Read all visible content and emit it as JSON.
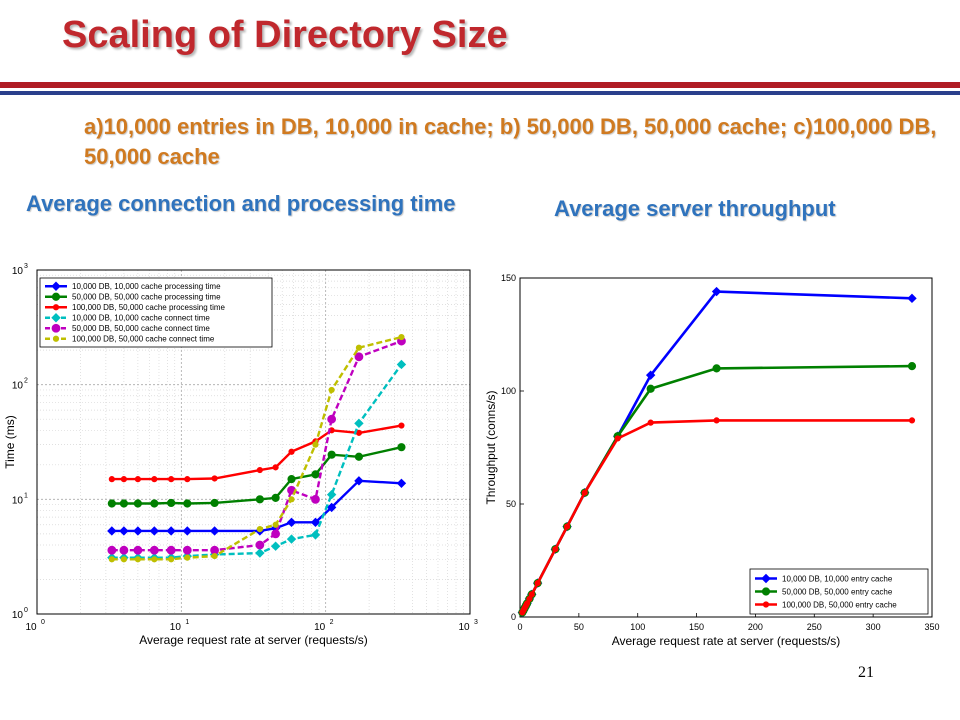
{
  "slide": {
    "title": "Scaling of Directory Size",
    "subtitle": "a)10,000 entries in DB, 10,000 in cache; b) 50,000 DB, 50,000 cache; c)100,000 DB, 50,000 cache",
    "left_caption": "Average connection  and processing time",
    "right_caption": "Average server throughput",
    "page_number": "21"
  },
  "chart_data": [
    {
      "type": "line",
      "xscale": "log",
      "yscale": "log",
      "xlim": [
        1,
        1000
      ],
      "ylim": [
        1,
        1000
      ],
      "xlabel": "Average request rate at server (requests/s)",
      "ylabel": "Time (ms)",
      "xticks": [
        1,
        10,
        100,
        1000
      ],
      "yticks": [
        1,
        10,
        100,
        1000
      ],
      "tick_labels": [
        {
          "base": "10",
          "exp": "0"
        },
        {
          "base": "10",
          "exp": "1"
        },
        {
          "base": "10",
          "exp": "2"
        },
        {
          "base": "10",
          "exp": "3"
        }
      ],
      "grid": true,
      "legend_position": "top-left",
      "series": [
        {
          "name": "10,000 DB, 10,000 cache processing time",
          "color": "#0000ff",
          "style": "solid",
          "marker": "diamond",
          "x": [
            3.3,
            4,
            5,
            6.5,
            8.5,
            11,
            17,
            35,
            45,
            58,
            85,
            110,
            170,
            335
          ],
          "y": [
            5.3,
            5.3,
            5.3,
            5.3,
            5.3,
            5.3,
            5.3,
            5.3,
            5.6,
            6.3,
            6.3,
            8.5,
            14.5,
            13.8
          ]
        },
        {
          "name": "50,000 DB, 50,000 cache processing time",
          "color": "#008000",
          "style": "solid",
          "marker": "circle",
          "x": [
            3.3,
            4,
            5,
            6.5,
            8.5,
            11,
            17,
            35,
            45,
            58,
            85,
            110,
            170,
            335
          ],
          "y": [
            9.2,
            9.2,
            9.2,
            9.2,
            9.3,
            9.2,
            9.3,
            10.0,
            10.3,
            15.0,
            16.5,
            24.5,
            23.5,
            28.5
          ]
        },
        {
          "name": "100,000 DB, 50,000 cache processing time",
          "color": "#ff0000",
          "style": "solid",
          "marker": "dot",
          "x": [
            3.3,
            4,
            5,
            6.5,
            8.5,
            11,
            17,
            35,
            45,
            58,
            85,
            110,
            170,
            335
          ],
          "y": [
            15,
            15,
            15,
            15,
            15,
            15,
            15.2,
            18,
            19,
            26,
            32,
            40,
            38,
            44
          ]
        },
        {
          "name": "10,000 DB, 10,000 cache connect time",
          "color": "#00bfbf",
          "style": "dashed",
          "marker": "diamond",
          "x": [
            3.3,
            4,
            5,
            6.5,
            8.5,
            11,
            17,
            35,
            45,
            58,
            85,
            110,
            170,
            335
          ],
          "y": [
            3.1,
            3.1,
            3.1,
            3.1,
            3.1,
            3.2,
            3.3,
            3.4,
            3.9,
            4.5,
            4.9,
            11,
            46,
            150
          ]
        },
        {
          "name": "50,000 DB, 50,000 cache connect time",
          "color": "#bf00bf",
          "style": "dashed",
          "marker": "circle",
          "x": [
            3.3,
            4,
            5,
            6.5,
            8.5,
            11,
            17,
            35,
            45,
            58,
            85,
            110,
            170,
            335
          ],
          "y": [
            3.6,
            3.6,
            3.6,
            3.6,
            3.6,
            3.6,
            3.6,
            4.0,
            5.0,
            12,
            10,
            50,
            175,
            240
          ]
        },
        {
          "name": "100,000 DB, 50,000 cache connect time",
          "color": "#bfbf00",
          "style": "dashed",
          "marker": "dot",
          "x": [
            3.3,
            4,
            5,
            6.5,
            8.5,
            11,
            17,
            35,
            45,
            58,
            85,
            110,
            170,
            335
          ],
          "y": [
            3.0,
            3.0,
            3.0,
            3.0,
            3.0,
            3.1,
            3.2,
            5.5,
            6.0,
            10,
            30,
            90,
            210,
            260
          ]
        }
      ]
    },
    {
      "type": "line",
      "xlim": [
        0,
        350
      ],
      "ylim": [
        0,
        150
      ],
      "xlabel": "Average request rate at server (requests/s)",
      "ylabel": "Throughput (conns/s)",
      "xticks": [
        0,
        50,
        100,
        150,
        200,
        250,
        300,
        350
      ],
      "yticks": [
        0,
        50,
        100,
        150
      ],
      "xtick_labels": [
        "0",
        "50",
        "100",
        "150",
        "200",
        "250",
        "300",
        "350"
      ],
      "ytick_labels": [
        "0",
        "50",
        "100",
        "150"
      ],
      "grid": false,
      "legend_position": "bottom-right",
      "series": [
        {
          "name": "10,000 DB, 10,000 entry cache",
          "color": "#0000ff",
          "style": "solid",
          "marker": "diamond",
          "x": [
            2,
            3,
            4,
            5,
            6,
            8,
            10,
            15,
            30,
            40,
            55,
            83,
            111,
            167,
            333
          ],
          "y": [
            2,
            3,
            4,
            5,
            6,
            8,
            10,
            15,
            30,
            40,
            55,
            80,
            107,
            144,
            141
          ]
        },
        {
          "name": "50,000 DB, 50,000 entry cache",
          "color": "#008000",
          "style": "solid",
          "marker": "circle",
          "x": [
            2,
            3,
            4,
            5,
            6,
            8,
            10,
            15,
            30,
            40,
            55,
            83,
            111,
            167,
            333
          ],
          "y": [
            2,
            3,
            4,
            5,
            6,
            8,
            10,
            15,
            30,
            40,
            55,
            80,
            101,
            110,
            111
          ]
        },
        {
          "name": "100,000 DB, 50,000 entry cache",
          "color": "#ff0000",
          "style": "solid",
          "marker": "dot",
          "x": [
            2,
            3,
            4,
            5,
            6,
            8,
            10,
            15,
            30,
            40,
            55,
            83,
            111,
            167,
            333
          ],
          "y": [
            2,
            3,
            4,
            5,
            6,
            8,
            10,
            15,
            30,
            40,
            55,
            79,
            86,
            87,
            87
          ]
        }
      ]
    }
  ]
}
